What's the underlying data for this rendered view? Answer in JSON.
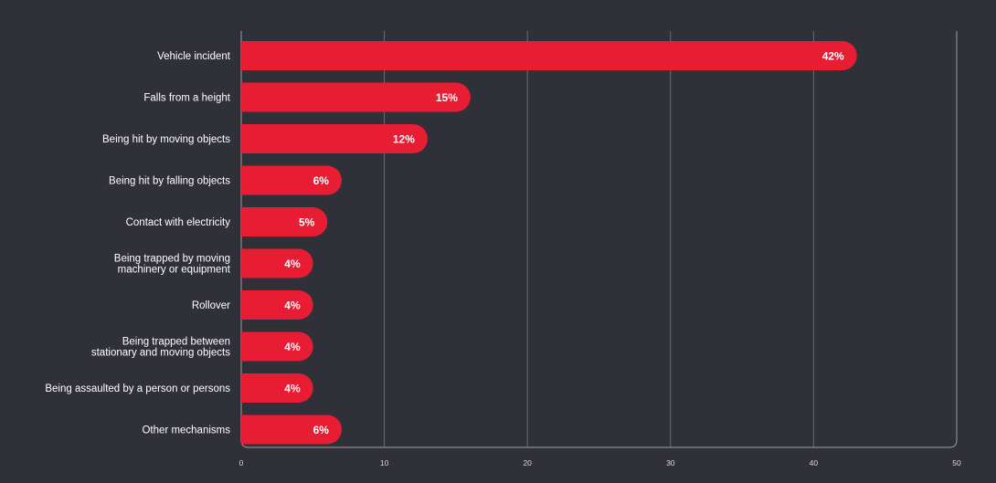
{
  "chart_data": {
    "type": "bar",
    "orientation": "horizontal",
    "categories": [
      [
        "Vehicle incident"
      ],
      [
        "Falls from a height"
      ],
      [
        "Being hit by moving objects"
      ],
      [
        "Being hit by falling objects"
      ],
      [
        "Contact with electricity"
      ],
      [
        "Being trapped by moving",
        "machinery or equipment"
      ],
      [
        "Rollover"
      ],
      [
        "Being trapped between",
        "stationary and moving objects"
      ],
      [
        "Being assaulted by a person or persons"
      ],
      [
        "Other mechanisms"
      ]
    ],
    "values": [
      42,
      15,
      12,
      6,
      5,
      4,
      4,
      4,
      4,
      6
    ],
    "data_labels": [
      "42%",
      "15%",
      "12%",
      "6%",
      "5%",
      "4%",
      "4%",
      "4%",
      "4%",
      "6%"
    ],
    "xlim": [
      0,
      50
    ],
    "xticks": [
      0,
      10,
      20,
      30,
      40,
      50
    ],
    "xtick_labels": [
      "0",
      "10",
      "20",
      "30",
      "40",
      "50"
    ],
    "grid": "vertical",
    "colors": {
      "bar": "#e81c32",
      "background": "#303038",
      "grid": "#6a6a72",
      "axis": "#8a8a92",
      "text": "#ffffff"
    }
  }
}
